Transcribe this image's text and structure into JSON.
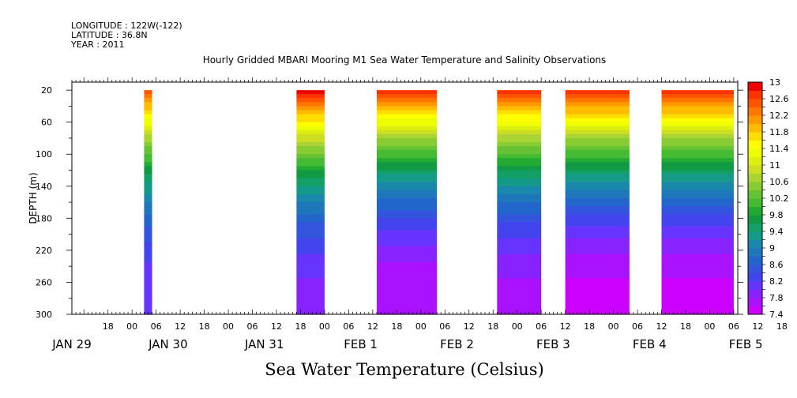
{
  "header": {
    "longitude": "LONGITUDE : 122W(-122)",
    "latitude": "LATITUDE : 36.8N",
    "year": "YEAR : 2011"
  },
  "chart_data": {
    "type": "heatmap",
    "title": "Hourly Gridded MBARI Mooring M1 Sea Water Temperature and Salinity Observations",
    "xlabel": "Sea Water Temperature (Celsius)",
    "ylabel": "DEPTH (m)",
    "x_axis": {
      "unit": "hours",
      "range_hours_from_jan29_00": [
        9,
        175
      ],
      "hour_tick_labels": [
        "18",
        "00",
        "06",
        "12",
        "18",
        "00",
        "06",
        "12",
        "18",
        "00",
        "06",
        "12",
        "18",
        "00",
        "06",
        "12",
        "18",
        "00",
        "06",
        "12",
        "18",
        "00",
        "06",
        "12",
        "18",
        "00",
        "06",
        "12",
        "18",
        "00",
        "06",
        "12"
      ],
      "date_labels": [
        "JAN 29",
        "JAN 30",
        "JAN 31",
        "FEB  1",
        "FEB  2",
        "FEB  3",
        "FEB  4",
        "FEB  5"
      ]
    },
    "y_axis": {
      "reversed": true,
      "range": [
        10,
        300
      ],
      "tick_labels": [
        "20",
        "60",
        "100",
        "140",
        "180",
        "220",
        "260",
        "300"
      ],
      "tick_values": [
        20,
        60,
        100,
        140,
        180,
        220,
        260,
        300
      ]
    },
    "colorbar": {
      "min": 7.4,
      "max": 13,
      "step": 0.2,
      "labels": [
        "13",
        "12.6",
        "12.2",
        "11.8",
        "11.4",
        "11",
        "10.6",
        "10.2",
        "9.8",
        "9.4",
        "9",
        "8.6",
        "8.2",
        "7.8",
        "7.4"
      ],
      "label_values": [
        13,
        12.6,
        12.2,
        11.8,
        11.4,
        11,
        10.6,
        10.2,
        9.8,
        9.4,
        9,
        8.6,
        8.2,
        7.8,
        7.4
      ],
      "colors_low_to_high": [
        "#cc00ff",
        "#aa11ff",
        "#8822ff",
        "#6633ff",
        "#4444ee",
        "#3355dd",
        "#2266cc",
        "#1f77bb",
        "#1a88aa",
        "#159988",
        "#13a066",
        "#119944",
        "#22aa33",
        "#44bb33",
        "#66c233",
        "#88cc33",
        "#aad433",
        "#ccdd22",
        "#ddee11",
        "#eeff00",
        "#ffff00",
        "#ffdd00",
        "#ffbb00",
        "#ff9900",
        "#ff7700",
        "#ff5500",
        "#ff3300",
        "#ee0000"
      ]
    },
    "depth_range": [
      20,
      300
    ],
    "data_blocks": [
      {
        "start_hour": 27,
        "end_hour": 29,
        "surface_temp": 12.6,
        "deep_temp": 8.0
      },
      {
        "start_hour": 65,
        "end_hour": 72,
        "surface_temp": 13.0,
        "deep_temp": 7.9
      },
      {
        "start_hour": 85,
        "end_hour": 100,
        "surface_temp": 12.8,
        "deep_temp": 7.6
      },
      {
        "start_hour": 115,
        "end_hour": 126,
        "surface_temp": 12.8,
        "deep_temp": 7.7
      },
      {
        "start_hour": 132,
        "end_hour": 148,
        "surface_temp": 12.9,
        "deep_temp": 7.5
      },
      {
        "start_hour": 156,
        "end_hour": 174,
        "surface_temp": 12.9,
        "deep_temp": 7.5
      }
    ]
  }
}
